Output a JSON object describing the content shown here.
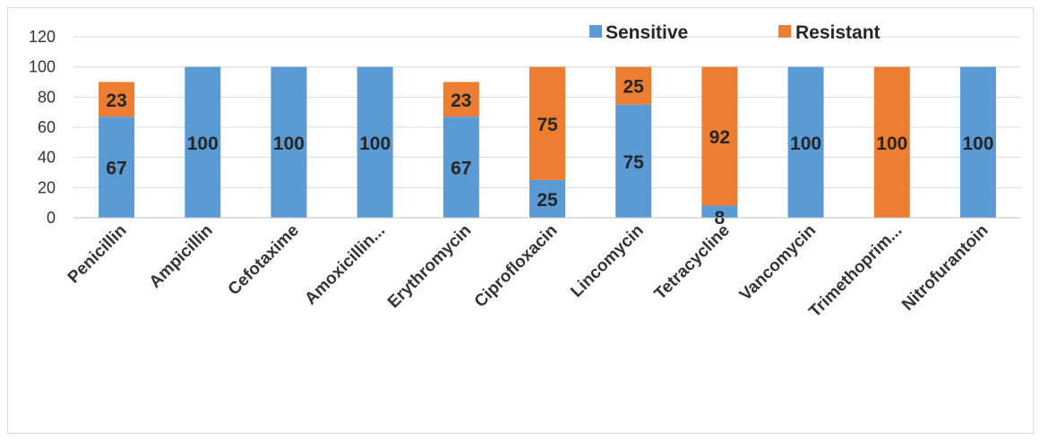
{
  "chart_data": {
    "type": "bar",
    "stacked": true,
    "categories": [
      "Penicillin",
      "Ampicillin",
      "Cefotaxime",
      "Amoxicillin...",
      "Erythromycin",
      "Ciprofloxacin",
      "Lincomycin",
      "Tetracycline",
      "Vancomycin",
      "Trimethoprim...",
      "Nitrofurantoin"
    ],
    "series": [
      {
        "name": "Sensitive",
        "values": [
          67,
          100,
          100,
          100,
          67,
          25,
          75,
          8,
          100,
          0,
          100
        ]
      },
      {
        "name": "Resistant",
        "values": [
          23,
          0,
          0,
          0,
          23,
          75,
          25,
          92,
          0,
          100,
          0
        ]
      }
    ],
    "title": "",
    "xlabel": "",
    "ylabel": "",
    "ylim": [
      0,
      120
    ],
    "yticks": [
      0,
      20,
      40,
      60,
      80,
      100,
      120
    ],
    "grid": true,
    "legend_position": "top-right",
    "colors": {
      "Sensitive": "#5b9bd5",
      "Resistant": "#ed7d31",
      "grid": "#d9d9d9",
      "axis": "#bfbfbf"
    }
  }
}
